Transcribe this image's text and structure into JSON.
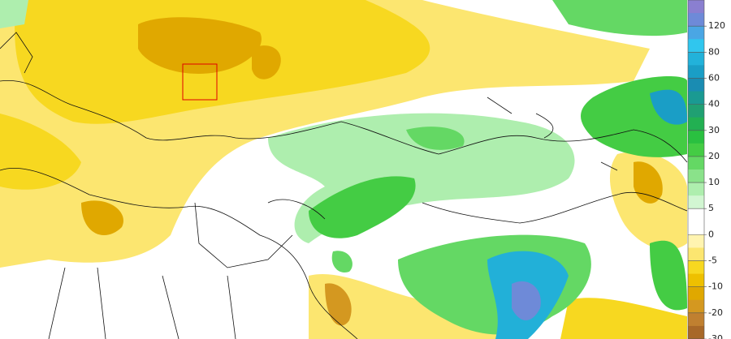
{
  "colorbar": {
    "ticks": [
      120,
      80,
      60,
      40,
      30,
      20,
      10,
      5,
      0,
      -5,
      -10,
      -20,
      -30
    ],
    "colors": [
      "#8a7fd0",
      "#6e8ad8",
      "#4aa6e4",
      "#30c6ee",
      "#22b2da",
      "#1a9ec6",
      "#1a8cb2",
      "#1a9a92",
      "#20a072",
      "#22b052",
      "#2ac040",
      "#44cc44",
      "#64d864",
      "#8ae28a",
      "#aeeeae",
      "#d2f6d2",
      "#ffffff",
      "#ffffff",
      "#fff4b0",
      "#fce670",
      "#f7d820",
      "#eec000",
      "#e0a800",
      "#d49820",
      "#c08030",
      "#a86828"
    ]
  }
}
